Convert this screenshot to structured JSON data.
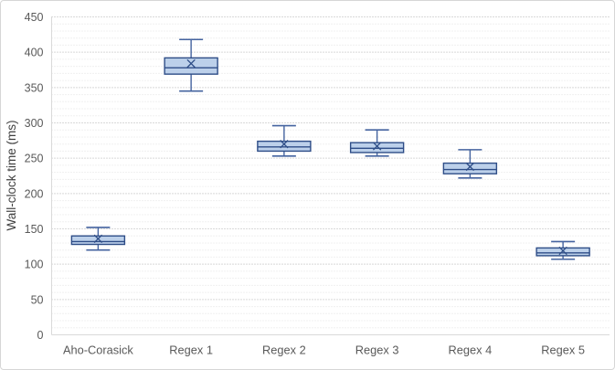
{
  "chart": {
    "ylabel": "Wall-clock time (ms)"
  },
  "chart_data": {
    "type": "boxplot",
    "title": "",
    "xlabel": "",
    "ylabel": "Wall-clock time (ms)",
    "categories": [
      "Aho-Corasick",
      "Regex 1",
      "Regex 2",
      "Regex 3",
      "Regex 4",
      "Regex 5"
    ],
    "series": [
      {
        "name": "Aho-Corasick",
        "min": 120,
        "q1": 128,
        "median": 132,
        "mean": 136,
        "q3": 140,
        "max": 152
      },
      {
        "name": "Regex 1",
        "min": 345,
        "q1": 369,
        "median": 378,
        "mean": 384,
        "q3": 392,
        "max": 418
      },
      {
        "name": "Regex 2",
        "min": 253,
        "q1": 260,
        "median": 266,
        "mean": 270,
        "q3": 274,
        "max": 296
      },
      {
        "name": "Regex 3",
        "min": 253,
        "q1": 258,
        "median": 264,
        "mean": 267,
        "q3": 272,
        "max": 290
      },
      {
        "name": "Regex 4",
        "min": 222,
        "q1": 228,
        "median": 234,
        "mean": 238,
        "q3": 243,
        "max": 262
      },
      {
        "name": "Regex 5",
        "min": 107,
        "q1": 112,
        "median": 116,
        "mean": 119,
        "q3": 123,
        "max": 132
      }
    ],
    "ylim": [
      0,
      450
    ],
    "y_major_step": 50,
    "y_minor_step": 10,
    "grid": "dotted-major-and-minor",
    "legend": "none",
    "colors": {
      "box_fill": "#bcd0ea",
      "box_stroke": "#2e4d87",
      "whisker_stroke": "#44639f",
      "mean_marker": "#2e4d87",
      "major_grid": "#b3b3b3",
      "minor_grid": "#e2e2e2",
      "axis_line": "#d9d9d9",
      "tick_text": "#595959"
    }
  }
}
